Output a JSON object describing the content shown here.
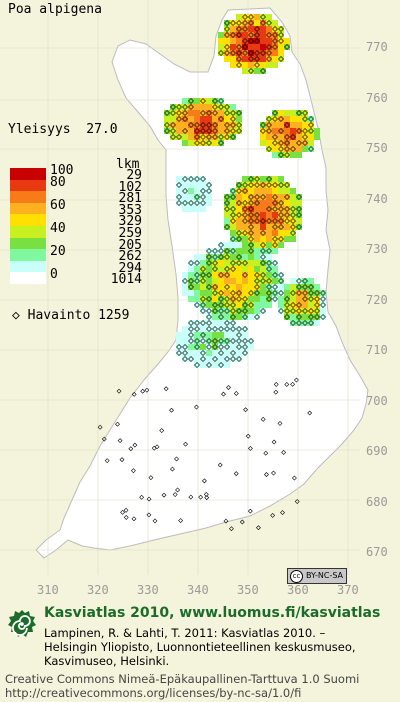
{
  "species": "Poa alpigena",
  "frequency": {
    "label": "Yleisyys",
    "value": "27.0"
  },
  "legend": {
    "count_header": "lkm",
    "classes": [
      {
        "label": "100",
        "color": "#c80000",
        "count": "29"
      },
      {
        "label": "80",
        "color": "#e83a10",
        "count": "102"
      },
      {
        "label": "",
        "color": "#f77b18",
        "count": "281"
      },
      {
        "label": "60",
        "color": "#ffb020",
        "count": "353"
      },
      {
        "label": "",
        "color": "#ffe000",
        "count": "329"
      },
      {
        "label": "40",
        "color": "#c8f020",
        "count": "259"
      },
      {
        "label": "",
        "color": "#78e040",
        "count": "205"
      },
      {
        "label": "20",
        "color": "#80f8a0",
        "count": "262"
      },
      {
        "label": "",
        "color": "#c8fff8",
        "count": "294"
      },
      {
        "label": "0",
        "color": "#ffffff",
        "count": "1014"
      }
    ]
  },
  "observations": {
    "label": "Havainto",
    "count": "1259",
    "marker": "diamond-marker"
  },
  "y_axis_ticks": [
    "770",
    "760",
    "750",
    "740",
    "730",
    "720",
    "710",
    "700",
    "690",
    "680",
    "670"
  ],
  "x_axis_ticks": [
    "310",
    "320",
    "330",
    "340",
    "350",
    "360",
    "370"
  ],
  "license_badge": {
    "symbol": "cc",
    "text": "BY-NC-SA"
  },
  "footer": {
    "title": "Kasviatlas 2010, www.luomus.fi/kasviatlas",
    "citation_lines": [
      "Lampinen, R. & Lahti, T. 2011: Kasviatlas 2010. –",
      "Helsingin Yliopisto, Luonnontieteellinen keskusmuseo,",
      "Kasvimuseo, Helsinki."
    ],
    "license_lines": [
      "Creative Commons Nimeä-Epäkaupallinen-Tarttuva 1.0 Suomi",
      "http://creativecommons.org/licenses/by-nc-sa/1.0/fi"
    ]
  },
  "icons": {
    "logo": "spiral-logo-icon"
  }
}
